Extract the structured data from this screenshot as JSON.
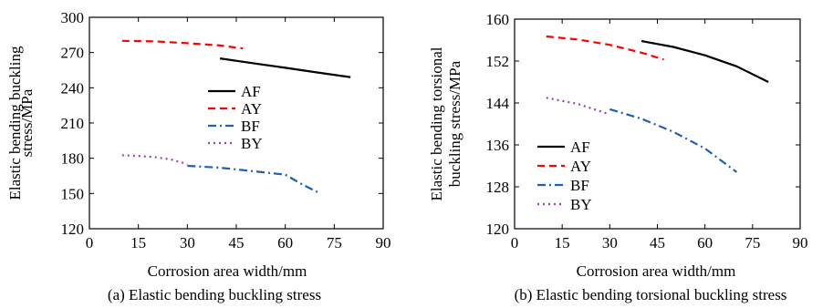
{
  "chart_data": [
    {
      "type": "line",
      "panel_caption": "(a) Elastic bending buckling stress",
      "xlabel": "Corrosion area width/mm",
      "ylabel_lines": [
        "Elastic bending buckling",
        "stress/MPa"
      ],
      "xlim": [
        0,
        90
      ],
      "ylim": [
        120,
        300
      ],
      "xticks": [
        0,
        15,
        30,
        45,
        60,
        75,
        90
      ],
      "yticks": [
        120,
        150,
        180,
        210,
        240,
        270,
        300
      ],
      "legend_position": "center",
      "grid": false,
      "series": [
        {
          "name": "AF",
          "color": "#000000",
          "dash": "solid",
          "x": [
            40,
            50,
            60,
            70,
            80
          ],
          "y": [
            265,
            261,
            257,
            253,
            249
          ]
        },
        {
          "name": "AY",
          "color": "#ff0000",
          "dash": "dashed",
          "x": [
            10,
            20,
            30,
            40,
            47
          ],
          "y": [
            280,
            279.5,
            278,
            276,
            273.5
          ]
        },
        {
          "name": "BF",
          "color": "#1f5fb4",
          "dash": "dashdot",
          "x": [
            30,
            40,
            50,
            60,
            65,
            70
          ],
          "y": [
            173.5,
            172,
            169,
            166,
            158,
            151
          ]
        },
        {
          "name": "BY",
          "color": "#9b3fb5",
          "dash": "dotted",
          "x": [
            10,
            15,
            20,
            25,
            30
          ],
          "y": [
            182.5,
            182,
            181,
            179,
            175
          ]
        }
      ]
    },
    {
      "type": "line",
      "panel_caption": "(b) Elastic bending torsional buckling stress",
      "xlabel": "Corrosion area width/mm",
      "ylabel_lines": [
        "Elastic bending torsional",
        "buckling stress/MPa"
      ],
      "xlim": [
        0,
        90
      ],
      "ylim": [
        120,
        160
      ],
      "xticks": [
        0,
        15,
        30,
        45,
        60,
        75,
        90
      ],
      "yticks": [
        120,
        128,
        136,
        144,
        152,
        160
      ],
      "legend_position": "bottom-left",
      "grid": false,
      "series": [
        {
          "name": "AF",
          "color": "#000000",
          "dash": "solid",
          "x": [
            40,
            50,
            60,
            70,
            80
          ],
          "y": [
            155.8,
            154.7,
            153.1,
            151,
            148
          ]
        },
        {
          "name": "AY",
          "color": "#ff0000",
          "dash": "dashed",
          "x": [
            10,
            20,
            30,
            40,
            47
          ],
          "y": [
            156.7,
            156.1,
            155.1,
            153.6,
            152.3
          ]
        },
        {
          "name": "BF",
          "color": "#1f5fb4",
          "dash": "dashdot",
          "x": [
            30,
            40,
            50,
            60,
            70
          ],
          "y": [
            142.8,
            141,
            138.5,
            135.3,
            130.8
          ]
        },
        {
          "name": "BY",
          "color": "#9b3fb5",
          "dash": "dotted",
          "x": [
            10,
            20,
            30
          ],
          "y": [
            145,
            143.8,
            141.8
          ]
        }
      ]
    }
  ]
}
